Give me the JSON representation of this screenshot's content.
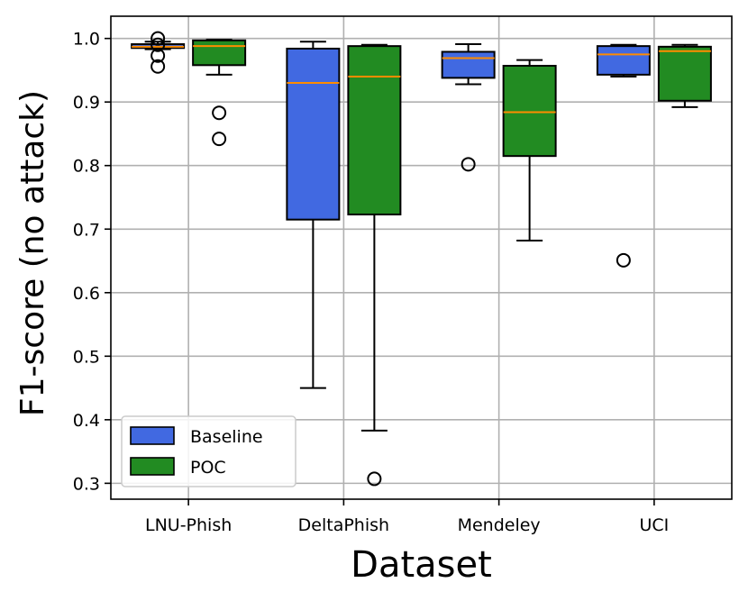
{
  "chart_data": {
    "type": "box",
    "xlabel": "Dataset",
    "ylabel": "F1-score (no attack)",
    "ylim": [
      0.275,
      1.035
    ],
    "yticks": [
      0.3,
      0.4,
      0.5,
      0.6,
      0.7,
      0.8,
      0.9,
      1.0
    ],
    "ytick_labels": [
      "0.3",
      "0.4",
      "0.5",
      "0.6",
      "0.7",
      "0.8",
      "0.9",
      "1.0"
    ],
    "categories": [
      "LNU-Phish",
      "DeltaPhish",
      "Mendeley",
      "UCI"
    ],
    "grid": true,
    "legend_position": "lower-left",
    "series": [
      {
        "name": "Baseline",
        "color": "#4169e1",
        "boxes": [
          {
            "whisker_low": 0.983,
            "q1": 0.985,
            "median": 0.987,
            "q3": 0.991,
            "whisker_high": 0.995,
            "outliers": [
              0.956,
              0.973,
              0.99,
              1.0
            ]
          },
          {
            "whisker_low": 0.45,
            "q1": 0.715,
            "median": 0.93,
            "q3": 0.984,
            "whisker_high": 0.995,
            "outliers": []
          },
          {
            "whisker_low": 0.928,
            "q1": 0.938,
            "median": 0.969,
            "q3": 0.979,
            "whisker_high": 0.991,
            "outliers": [
              0.802
            ]
          },
          {
            "whisker_low": 0.94,
            "q1": 0.943,
            "median": 0.975,
            "q3": 0.988,
            "whisker_high": 0.99,
            "outliers": [
              0.651
            ]
          }
        ]
      },
      {
        "name": "POC",
        "color": "#228b22",
        "boxes": [
          {
            "whisker_low": 0.943,
            "q1": 0.958,
            "median": 0.988,
            "q3": 0.997,
            "whisker_high": 0.998,
            "outliers": [
              0.842,
              0.883
            ]
          },
          {
            "whisker_low": 0.383,
            "q1": 0.723,
            "median": 0.94,
            "q3": 0.988,
            "whisker_high": 0.99,
            "outliers": [
              0.307
            ]
          },
          {
            "whisker_low": 0.682,
            "q1": 0.815,
            "median": 0.884,
            "q3": 0.957,
            "whisker_high": 0.966,
            "outliers": []
          },
          {
            "whisker_low": 0.892,
            "q1": 0.902,
            "median": 0.98,
            "q3": 0.987,
            "whisker_high": 0.99,
            "outliers": []
          }
        ]
      }
    ],
    "median_color": "#ff8c00"
  }
}
